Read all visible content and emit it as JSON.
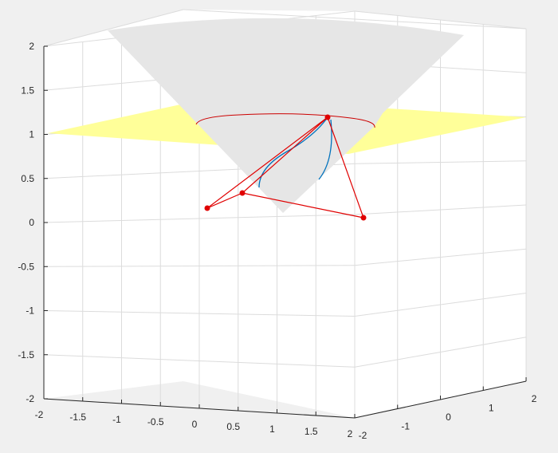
{
  "figure": {
    "background": "#f0f0f0",
    "axes_background": "#ffffff",
    "grid_color": "#dcdcdc",
    "axis_color": "#262626"
  },
  "chart_data": {
    "type": "surface3d",
    "title": "",
    "xlabel": "",
    "ylabel": "",
    "zlabel": "",
    "xlim": [
      -2,
      2
    ],
    "ylim": [
      -2,
      2
    ],
    "zlim": [
      -2,
      2
    ],
    "grid": true,
    "x_ticks": [
      "-2",
      "-1.5",
      "-1",
      "-0.5",
      "0",
      "0.5",
      "1",
      "1.5",
      "2"
    ],
    "y_ticks": [
      "-2",
      "-1",
      "0",
      "1",
      "2"
    ],
    "z_ticks": [
      "-2",
      "-1.5",
      "-1",
      "-0.5",
      "0",
      "0.5",
      "1",
      "1.5",
      "2"
    ],
    "surfaces": [
      {
        "name": "",
        "kind": "plane",
        "z": 1.1,
        "color": "#ffff99"
      },
      {
        "name": "",
        "kind": "cone",
        "apex_z": 0.1,
        "top_z": 2,
        "color": "#e6e6e6"
      }
    ],
    "curves": [
      {
        "name": "",
        "kind": "circle",
        "z": 1.1,
        "color": "#cc0000"
      },
      {
        "name": "",
        "kind": "trajectory",
        "color": "#0072bd"
      }
    ],
    "linkage": {
      "color": "#e00000",
      "points": [
        {
          "x": 0.27,
          "y": 0.5,
          "z": 1.1
        },
        {
          "x": -1.15,
          "y": -0.45,
          "z": 0.15
        },
        {
          "x": -0.55,
          "y": -0.6,
          "z": 0.32
        },
        {
          "x": 1.1,
          "y": 0.9,
          "z": 0.03
        }
      ]
    }
  }
}
